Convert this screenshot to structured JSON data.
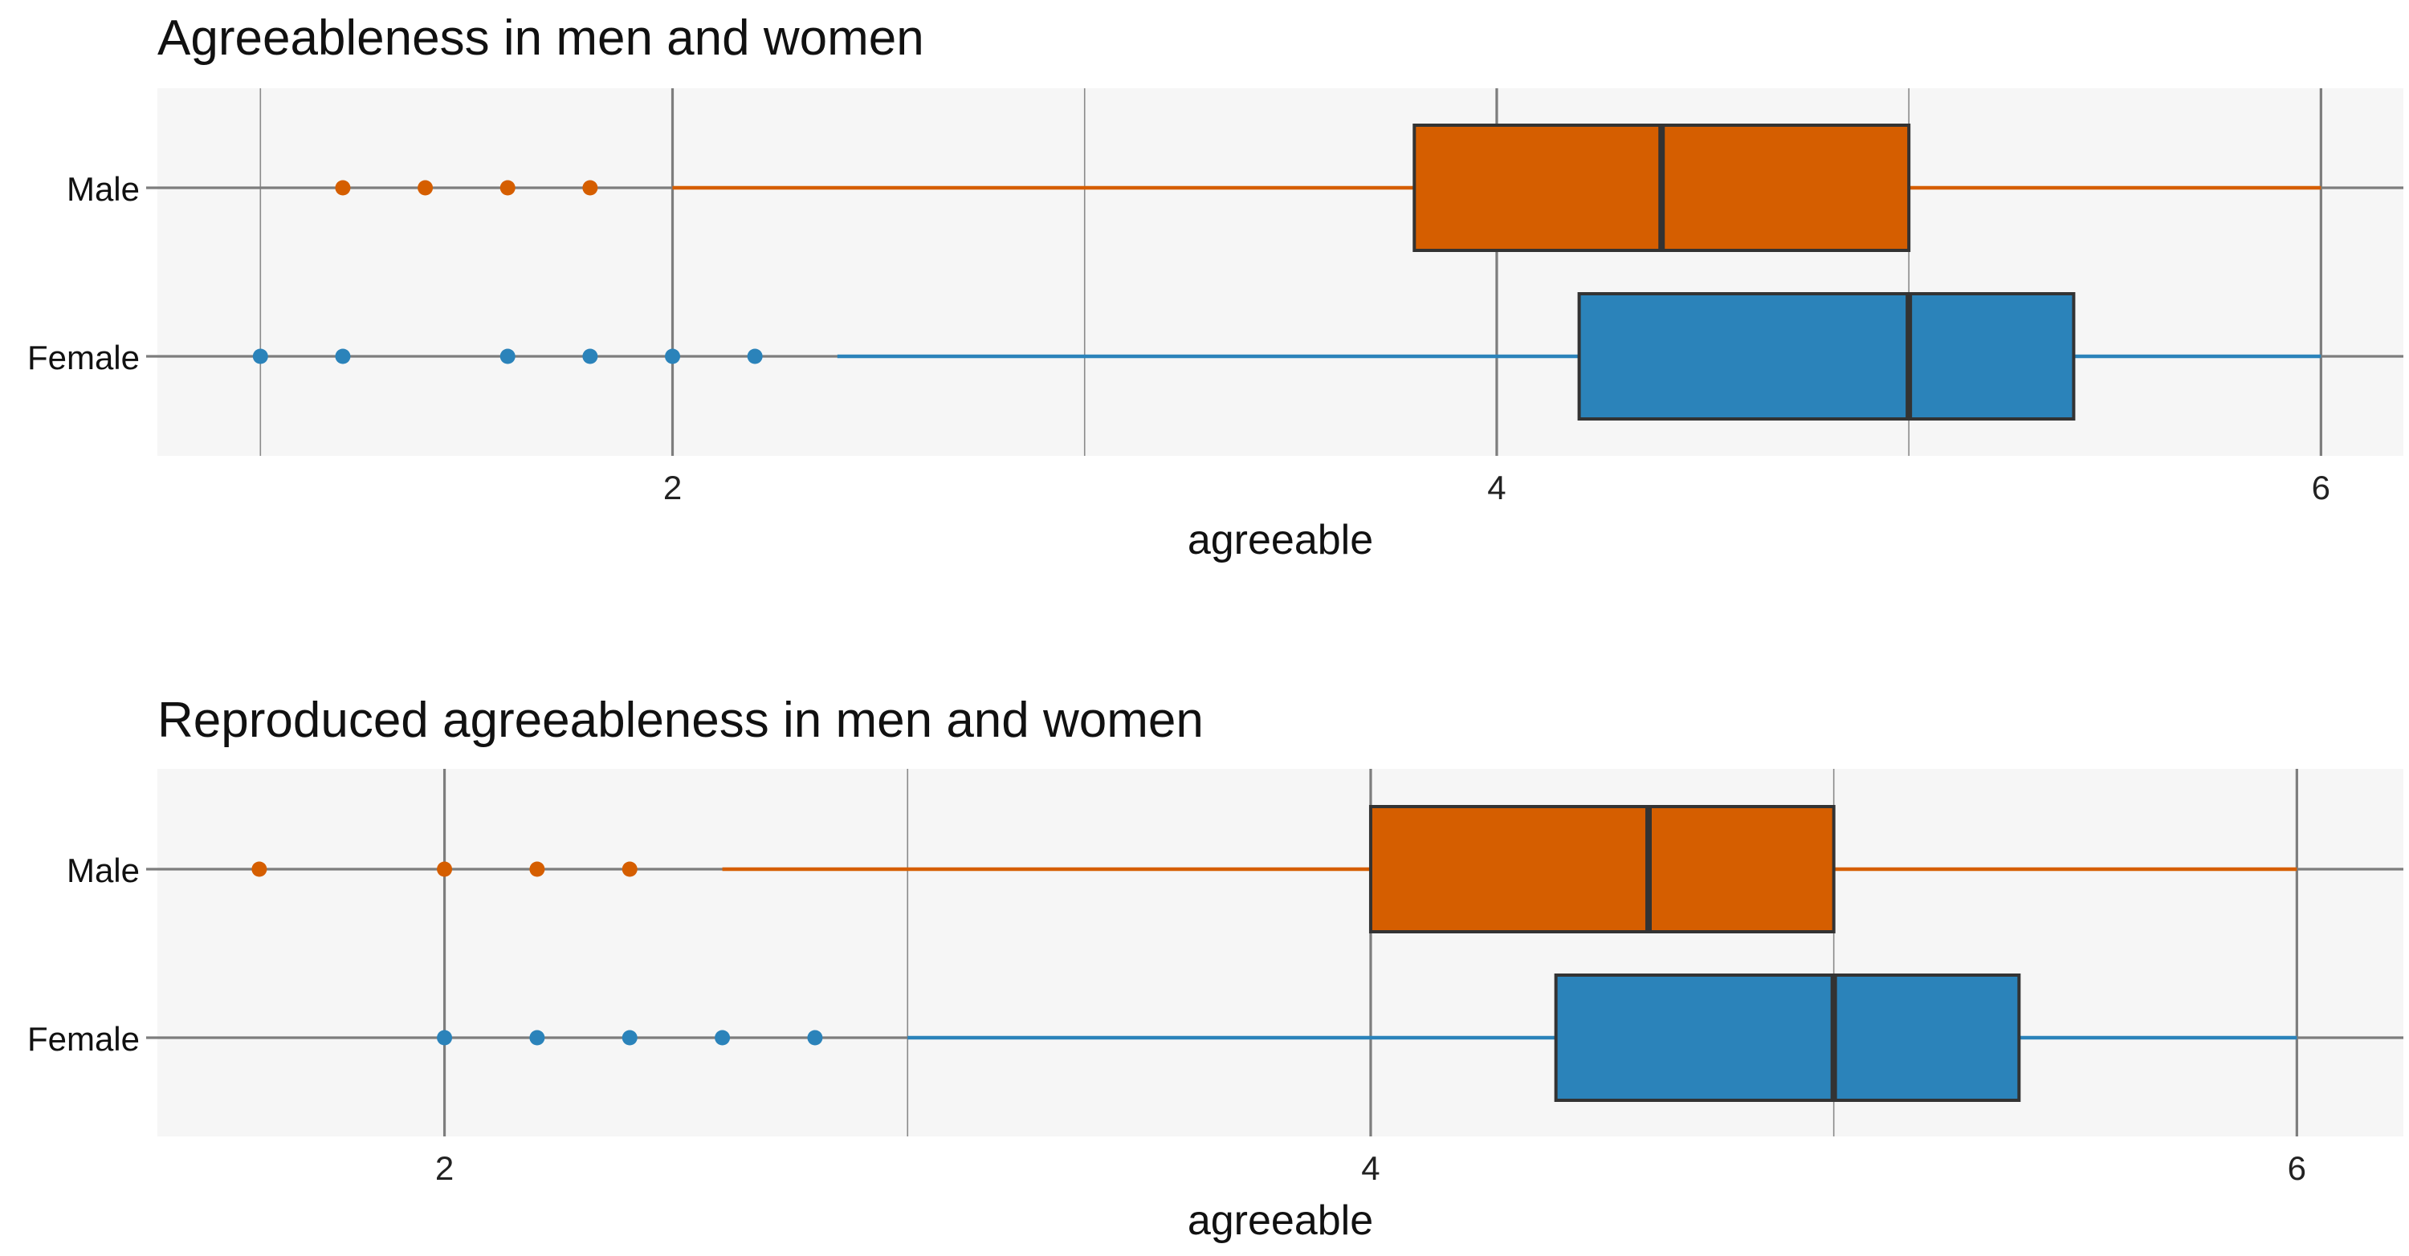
{
  "chart_data": [
    {
      "type": "boxplot",
      "title": "Agreeableness in men and women",
      "xlabel": "agreeable",
      "ylabel": "",
      "xlim": [
        0.75,
        6.2
      ],
      "x_ticks": [
        2,
        4,
        6
      ],
      "x_ticks_labels": [
        "2",
        "4",
        "6"
      ],
      "categories": [
        "Male",
        "Female"
      ],
      "series": [
        {
          "name": "Male",
          "color": "#d55e00",
          "whisker_low": 2.0,
          "q1": 3.8,
          "median": 4.4,
          "q3": 5.0,
          "whisker_high": 6.0,
          "outliers": [
            1.2,
            1.4,
            1.6,
            1.8
          ]
        },
        {
          "name": "Female",
          "color": "#2b83ba",
          "whisker_low": 2.4,
          "q1": 4.2,
          "median": 5.0,
          "q3": 5.4,
          "whisker_high": 6.0,
          "outliers": [
            1.0,
            1.2,
            1.6,
            1.8,
            2.0,
            2.2
          ]
        }
      ]
    },
    {
      "type": "boxplot",
      "title": "Reproduced agreeableness in men and women",
      "xlabel": "agreeable",
      "ylabel": "",
      "xlim": [
        1.38,
        6.23
      ],
      "x_ticks": [
        2,
        4,
        6
      ],
      "x_ticks_labels": [
        "2",
        "4",
        "6"
      ],
      "categories": [
        "Male",
        "Female"
      ],
      "series": [
        {
          "name": "Male",
          "color": "#d55e00",
          "whisker_low": 2.6,
          "q1": 4.0,
          "median": 4.6,
          "q3": 5.0,
          "whisker_high": 6.0,
          "outliers": [
            1.6,
            2.0,
            2.2,
            2.4
          ]
        },
        {
          "name": "Female",
          "color": "#2b83ba",
          "whisker_low": 3.0,
          "q1": 4.4,
          "median": 5.0,
          "q3": 5.4,
          "whisker_high": 6.0,
          "outliers": [
            2.0,
            2.2,
            2.4,
            2.6,
            2.8
          ]
        }
      ]
    }
  ]
}
